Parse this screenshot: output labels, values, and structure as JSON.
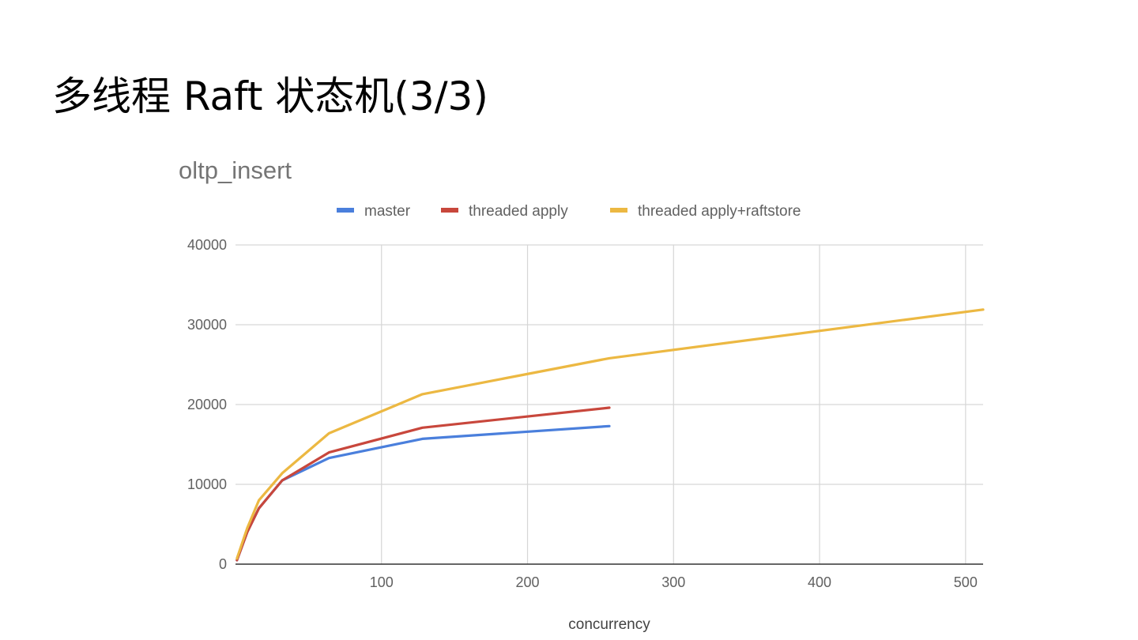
{
  "slide": {
    "title": "多线程 Raft 状态机(3/3)"
  },
  "chart_data": {
    "type": "line",
    "title": "oltp_insert",
    "xlabel": "concurrency",
    "ylabel": "",
    "xlim": [
      0,
      512
    ],
    "ylim": [
      0,
      40000
    ],
    "x_ticks": [
      100,
      200,
      300,
      400,
      500
    ],
    "y_ticks": [
      0,
      10000,
      20000,
      30000,
      40000
    ],
    "grid": true,
    "legend_position": "top",
    "series": [
      {
        "name": "master",
        "color": "#4a7fdc",
        "points": [
          [
            1,
            500
          ],
          [
            8,
            4000
          ],
          [
            16,
            7000
          ],
          [
            32,
            10500
          ],
          [
            64,
            13300
          ],
          [
            128,
            15700
          ],
          [
            256,
            17300
          ]
        ]
      },
      {
        "name": "threaded apply",
        "color": "#c8473c",
        "points": [
          [
            1,
            500
          ],
          [
            8,
            4000
          ],
          [
            16,
            7000
          ],
          [
            32,
            10500
          ],
          [
            64,
            14000
          ],
          [
            128,
            17100
          ],
          [
            256,
            19600
          ]
        ]
      },
      {
        "name": "threaded apply+raftstore",
        "color": "#ecb842",
        "points": [
          [
            1,
            700
          ],
          [
            8,
            4500
          ],
          [
            16,
            8000
          ],
          [
            32,
            11400
          ],
          [
            64,
            16400
          ],
          [
            128,
            21300
          ],
          [
            256,
            25800
          ],
          [
            512,
            31900
          ]
        ]
      }
    ]
  }
}
